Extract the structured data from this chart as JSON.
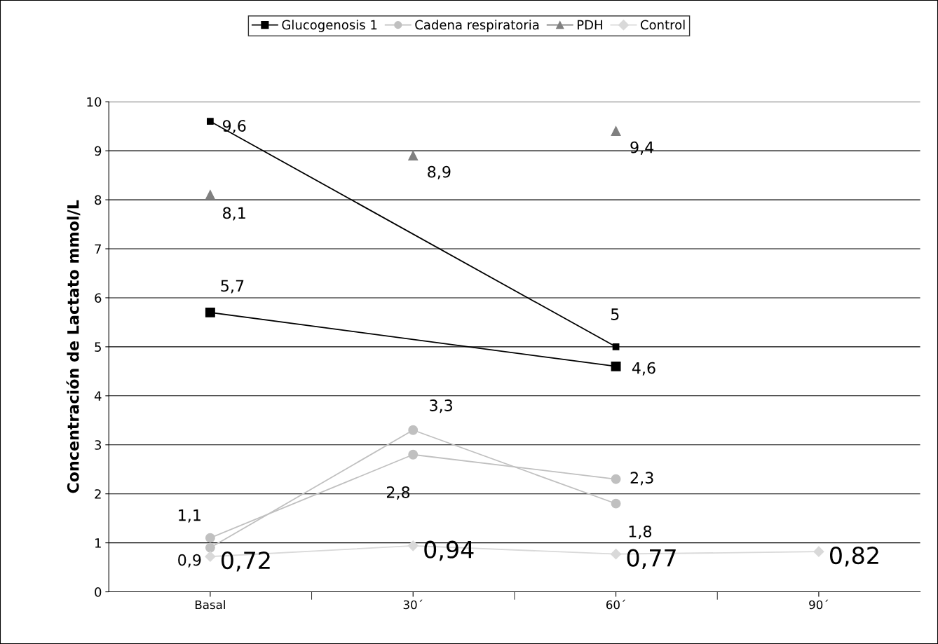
{
  "chart_data": {
    "type": "line",
    "ylabel": "Concentración de Lactato mmol/L",
    "categories": [
      "Basal",
      "30´",
      "60´",
      "90´"
    ],
    "series": [
      {
        "name": "Glucogenosis 1",
        "color": "#000000",
        "marker": "square",
        "values": [
          9.6,
          null,
          5,
          null
        ],
        "value_labels": [
          "9,6",
          null,
          "5",
          null
        ]
      },
      {
        "color": "#000000",
        "marker": "square",
        "values": [
          5.7,
          null,
          4.6,
          null
        ],
        "value_labels": [
          "5,7",
          null,
          "4,6",
          null
        ]
      },
      {
        "name": "Cadena respiratoria",
        "color": "#c0c0c0",
        "marker": "circle",
        "values": [
          0.9,
          3.3,
          1.8,
          null
        ],
        "value_labels": [
          "0,9",
          "3,3",
          "1,8",
          null
        ]
      },
      {
        "color": "#c0c0c0",
        "marker": "circle",
        "values": [
          1.1,
          2.8,
          2.3,
          null
        ],
        "value_labels": [
          "1,1",
          "2,8",
          "2,3",
          null
        ]
      },
      {
        "name": "PDH",
        "type": "scatter",
        "color": "#808080",
        "marker": "triangle",
        "values": [
          8.1,
          8.9,
          9.4,
          null
        ],
        "value_labels": [
          "8,1",
          "8,9",
          "9,4",
          null
        ]
      },
      {
        "name": "Control",
        "color": "#d9d9d9",
        "marker": "diamond",
        "values": [
          0.72,
          0.94,
          0.77,
          0.82
        ],
        "value_labels": [
          "0,72",
          "0,94",
          "0,77",
          "0,82"
        ]
      }
    ],
    "ylim": [
      0,
      10
    ],
    "yticks": [
      0,
      1,
      2,
      3,
      4,
      5,
      6,
      7,
      8,
      9,
      10
    ],
    "grid": "y",
    "legend": "top"
  }
}
